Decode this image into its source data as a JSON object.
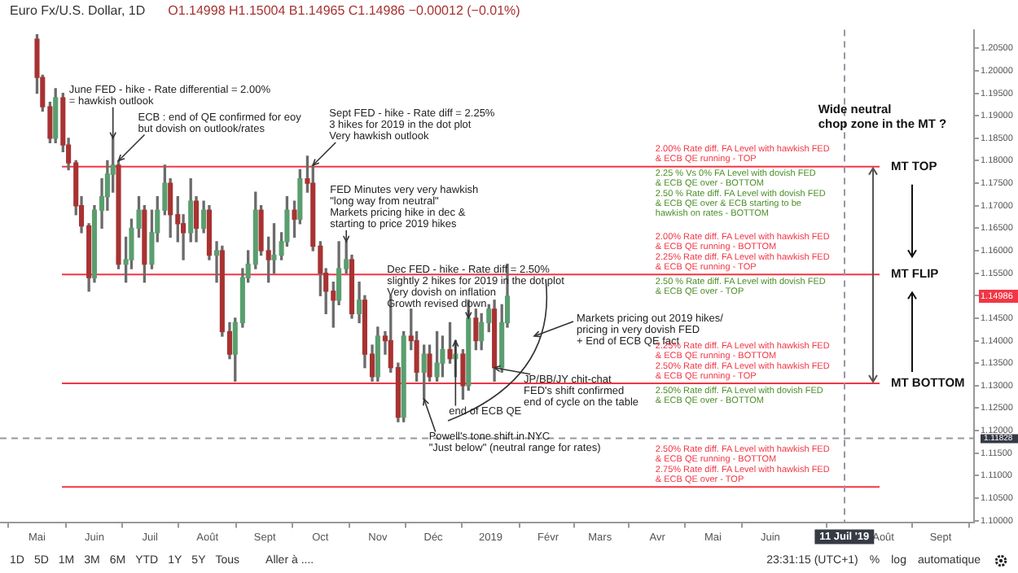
{
  "chart_data": {
    "type": "candlestick",
    "title": "Euro Fx/U.S. Dollar, 1D",
    "subtitle": "O1.14998 H1.15004 B1.14965 C1.14986 −0.00012 (−0.01%)",
    "x": [
      "2018-05-01",
      "2018-05-04",
      "2018-05-08",
      "2018-05-11",
      "2018-05-15",
      "2018-05-18",
      "2018-05-22",
      "2018-05-25",
      "2018-05-29",
      "2018-06-01",
      "2018-06-05",
      "2018-06-08",
      "2018-06-11",
      "2018-06-14",
      "2018-06-18",
      "2018-06-21",
      "2018-06-25",
      "2018-06-28",
      "2018-07-02",
      "2018-07-05",
      "2018-07-09",
      "2018-07-12",
      "2018-07-16",
      "2018-07-19",
      "2018-07-23",
      "2018-07-26",
      "2018-07-30",
      "2018-08-02",
      "2018-08-06",
      "2018-08-09",
      "2018-08-13",
      "2018-08-16",
      "2018-08-20",
      "2018-08-23",
      "2018-08-27",
      "2018-08-30",
      "2018-09-03",
      "2018-09-06",
      "2018-09-10",
      "2018-09-13",
      "2018-09-17",
      "2018-09-20",
      "2018-09-24",
      "2018-09-27",
      "2018-10-01",
      "2018-10-04",
      "2018-10-08",
      "2018-10-11",
      "2018-10-15",
      "2018-10-18",
      "2018-10-22",
      "2018-10-25",
      "2018-10-29",
      "2018-11-01",
      "2018-11-05",
      "2018-11-08",
      "2018-11-12",
      "2018-11-15",
      "2018-11-19",
      "2018-11-22",
      "2018-11-26",
      "2018-11-29",
      "2018-12-03",
      "2018-12-06",
      "2018-12-10",
      "2018-12-13",
      "2018-12-17",
      "2018-12-20",
      "2018-12-24",
      "2018-12-27",
      "2018-12-31",
      "2019-01-03",
      "2019-01-07",
      "2019-01-10"
    ],
    "ohlc": [
      [
        1.207,
        1.208,
        1.195,
        1.1985
      ],
      [
        1.1985,
        1.199,
        1.191,
        1.192
      ],
      [
        1.192,
        1.193,
        1.184,
        1.185
      ],
      [
        1.185,
        1.196,
        1.184,
        1.194
      ],
      [
        1.194,
        1.195,
        1.182,
        1.1835
      ],
      [
        1.1835,
        1.185,
        1.178,
        1.1795
      ],
      [
        1.1795,
        1.18,
        1.168,
        1.17
      ],
      [
        1.17,
        1.172,
        1.164,
        1.1655
      ],
      [
        1.1655,
        1.166,
        1.151,
        1.154
      ],
      [
        1.154,
        1.17,
        1.153,
        1.169
      ],
      [
        1.169,
        1.176,
        1.165,
        1.172
      ],
      [
        1.172,
        1.18,
        1.169,
        1.177
      ],
      [
        1.177,
        1.185,
        1.173,
        1.179
      ],
      [
        1.179,
        1.18,
        1.156,
        1.157
      ],
      [
        1.157,
        1.163,
        1.153,
        1.158
      ],
      [
        1.158,
        1.167,
        1.156,
        1.165
      ],
      [
        1.165,
        1.172,
        1.163,
        1.169
      ],
      [
        1.169,
        1.17,
        1.153,
        1.157
      ],
      [
        1.157,
        1.169,
        1.156,
        1.164
      ],
      [
        1.164,
        1.172,
        1.162,
        1.169
      ],
      [
        1.169,
        1.179,
        1.168,
        1.175
      ],
      [
        1.175,
        1.176,
        1.163,
        1.168
      ],
      [
        1.168,
        1.172,
        1.162,
        1.166
      ],
      [
        1.166,
        1.168,
        1.158,
        1.164
      ],
      [
        1.164,
        1.176,
        1.162,
        1.171
      ],
      [
        1.171,
        1.172,
        1.162,
        1.165
      ],
      [
        1.165,
        1.171,
        1.164,
        1.169
      ],
      [
        1.169,
        1.17,
        1.158,
        1.159
      ],
      [
        1.159,
        1.162,
        1.153,
        1.16
      ],
      [
        1.16,
        1.161,
        1.141,
        1.142
      ],
      [
        1.142,
        1.144,
        1.136,
        1.137
      ],
      [
        1.137,
        1.145,
        1.131,
        1.144
      ],
      [
        1.144,
        1.156,
        1.143,
        1.154
      ],
      [
        1.154,
        1.16,
        1.153,
        1.157
      ],
      [
        1.157,
        1.173,
        1.156,
        1.169
      ],
      [
        1.169,
        1.17,
        1.159,
        1.16
      ],
      [
        1.16,
        1.163,
        1.153,
        1.158
      ],
      [
        1.158,
        1.166,
        1.155,
        1.159
      ],
      [
        1.159,
        1.164,
        1.158,
        1.162
      ],
      [
        1.162,
        1.172,
        1.161,
        1.169
      ],
      [
        1.169,
        1.171,
        1.163,
        1.167
      ],
      [
        1.167,
        1.178,
        1.166,
        1.176
      ],
      [
        1.176,
        1.181,
        1.173,
        1.175
      ],
      [
        1.175,
        1.179,
        1.16,
        1.161
      ],
      [
        1.161,
        1.162,
        1.15,
        1.155
      ],
      [
        1.155,
        1.156,
        1.146,
        1.151
      ],
      [
        1.151,
        1.153,
        1.143,
        1.149
      ],
      [
        1.149,
        1.162,
        1.148,
        1.156
      ],
      [
        1.156,
        1.162,
        1.155,
        1.158
      ],
      [
        1.158,
        1.159,
        1.145,
        1.146
      ],
      [
        1.146,
        1.153,
        1.144,
        1.149
      ],
      [
        1.149,
        1.15,
        1.134,
        1.137
      ],
      [
        1.137,
        1.139,
        1.131,
        1.132
      ],
      [
        1.132,
        1.143,
        1.131,
        1.141
      ],
      [
        1.141,
        1.142,
        1.137,
        1.14
      ],
      [
        1.14,
        1.15,
        1.133,
        1.134
      ],
      [
        1.134,
        1.135,
        1.122,
        1.123
      ],
      [
        1.123,
        1.142,
        1.122,
        1.141
      ],
      [
        1.141,
        1.147,
        1.138,
        1.14
      ],
      [
        1.14,
        1.142,
        1.131,
        1.133
      ],
      [
        1.133,
        1.139,
        1.127,
        1.137
      ],
      [
        1.137,
        1.139,
        1.131,
        1.132
      ],
      [
        1.132,
        1.142,
        1.131,
        1.135
      ],
      [
        1.135,
        1.141,
        1.132,
        1.138
      ],
      [
        1.138,
        1.144,
        1.135,
        1.136
      ],
      [
        1.136,
        1.14,
        1.132,
        1.137
      ],
      [
        1.137,
        1.138,
        1.127,
        1.13
      ],
      [
        1.13,
        1.149,
        1.129,
        1.145
      ],
      [
        1.145,
        1.147,
        1.138,
        1.14
      ],
      [
        1.14,
        1.146,
        1.138,
        1.144
      ],
      [
        1.144,
        1.148,
        1.142,
        1.147
      ],
      [
        1.147,
        1.149,
        1.131,
        1.134
      ],
      [
        1.134,
        1.148,
        1.133,
        1.144
      ],
      [
        1.144,
        1.157,
        1.143,
        1.14986
      ]
    ],
    "xlim": [
      "2018-04-11",
      "2019-09-19"
    ],
    "xticks": [
      {
        "value": "2018-05-01",
        "label": "Mai"
      },
      {
        "value": "2018-06-01",
        "label": "Juin"
      },
      {
        "value": "2018-07-01",
        "label": "Juil"
      },
      {
        "value": "2018-08-01",
        "label": "Août"
      },
      {
        "value": "2018-09-01",
        "label": "Sept"
      },
      {
        "value": "2018-10-01",
        "label": "Oct"
      },
      {
        "value": "2018-11-01",
        "label": "Nov"
      },
      {
        "value": "2018-12-01",
        "label": "Déc"
      },
      {
        "value": "2019-01-01",
        "label": "2019"
      },
      {
        "value": "2019-02-01",
        "label": "Févr"
      },
      {
        "value": "2019-03-01",
        "label": "Mars"
      },
      {
        "value": "2019-04-01",
        "label": "Avr"
      },
      {
        "value": "2019-05-01",
        "label": "Mai"
      },
      {
        "value": "2019-06-01",
        "label": "Juin"
      },
      {
        "value": "2019-08-01",
        "label": "Août"
      },
      {
        "value": "2019-09-01",
        "label": "Sept"
      }
    ],
    "ylim": [
      1.0995,
      1.2091
    ],
    "yticks": [
      {
        "value": 1.1,
        "label": "1.10000"
      },
      {
        "value": 1.105,
        "label": "1.10500"
      },
      {
        "value": 1.11,
        "label": "1.11000"
      },
      {
        "value": 1.115,
        "label": "1.11500"
      },
      {
        "value": 1.12,
        "label": "1.12000"
      },
      {
        "value": 1.125,
        "label": "1.12500"
      },
      {
        "value": 1.13,
        "label": "1.13000"
      },
      {
        "value": 1.135,
        "label": "1.13500"
      },
      {
        "value": 1.14,
        "label": "1.14000"
      },
      {
        "value": 1.145,
        "label": "1.14500"
      },
      {
        "value": 1.15,
        "label": null
      },
      {
        "value": 1.155,
        "label": "1.15500"
      },
      {
        "value": 1.16,
        "label": "1.16000"
      },
      {
        "value": 1.165,
        "label": "1.16500"
      },
      {
        "value": 1.17,
        "label": "1.17000"
      },
      {
        "value": 1.175,
        "label": "1.17500"
      },
      {
        "value": 1.18,
        "label": "1.18000"
      },
      {
        "value": 1.185,
        "label": "1.18500"
      },
      {
        "value": 1.19,
        "label": "1.19000"
      },
      {
        "value": 1.195,
        "label": "1.19500"
      },
      {
        "value": 1.2,
        "label": "1.20000"
      },
      {
        "value": 1.205,
        "label": "1.20500"
      }
    ],
    "ref_lines": [
      {
        "axis": "y",
        "value": 1.1787,
        "label": "MT TOP",
        "color": "#f23645"
      },
      {
        "axis": "y",
        "value": 1.1547,
        "label": "MT FLIP",
        "color": "#f23645"
      },
      {
        "axis": "y",
        "value": 1.1305,
        "label": "MT BOTTOM",
        "color": "#f23645"
      },
      {
        "axis": "y",
        "value": 1.1075,
        "color": "#f23645"
      },
      {
        "axis": "y",
        "value": 1.11828,
        "label": "1.11828",
        "color": "#9598a1",
        "line_style": "dashed"
      },
      {
        "axis": "x",
        "value": "2019-07-11",
        "label": "11 Juil '19",
        "color": "#9598a1",
        "line_style": "dashed"
      }
    ],
    "annotations": [
      {
        "text": "June FED - hike - Rate differential = 2.00%\n= hawkish outlook",
        "x": "2018-06-11",
        "y": 1.185
      },
      {
        "text": "ECB : end of QE confirmed for eoy\nbut dovish on outlook/rates",
        "x": "2018-06-14",
        "y": 1.18
      },
      {
        "text": "Sept FED - hike - Rate diff = 2.25%\n3 hikes for 2019 in the dot plot\nVery hawkish outlook",
        "x": "2018-09-27",
        "y": 1.179
      },
      {
        "text": "FED Minutes very very hawkish\n\"long way from neutral\"\nMarkets pricing hike in dec &\nstarting to price 2019 hikes",
        "x": "2018-10-15",
        "y": 1.162
      },
      {
        "text": "Dec FED - hike - Rate diff = 2.50%\nslightly 2 hikes for 2019 in the dot plot\nVery dovish on inflation\nGrowth revised down",
        "x": "2018-12-20",
        "y": 1.145
      },
      "Markets pricing out 2019 hikes/\npricing in very dovish FED\n+ End of ECB QE fact",
      {
        "text": "JP/BB/JY chit-chat\nFED's shift confirmed\nend of cycle on the table",
        "x": "2019-01-03",
        "y": 1.134
      },
      {
        "text": "end of ECB QE",
        "x": "2018-12-13",
        "y": 1.14
      },
      {
        "text": "Powell's tone shift in NYC\n\"Just below\" (neutral range for rates)",
        "x": "2018-11-26",
        "y": 1.127
      },
      "2.00% Rate diff. FA Level with hawkish FED\n& ECB QE running - TOP",
      "2.25 % Vs 0% FA Level with dovish FED\n& ECB QE over - BOTTOM",
      "2.50 % Rate diff. FA Level with dovish FED\n& ECB QE over & ECB starting to be\nhawkish on rates - BOTTOM",
      "2.00% Rate diff. FA Level with hawkish FED\n& ECB QE running - BOTTOM",
      "2.25% Rate diff. FA Level with hawkish FED\n& ECB QE running - TOP",
      "2.50 % Rate diff. FA Level with dovish FED\n& ECB QE over - TOP",
      "2.25% Rate diff. FA Level with hawkish FED\n& ECB QE running - BOTTOM",
      "2.50% Rate diff. FA Level with hawkish FED\n& ECB QE running - TOP",
      "2.50% Rate diff. FA Level with dovish FED\n& ECB QE over - BOTTOM",
      "2.50% Rate diff. FA Level with hawkish FED\n& ECB QE running - BOTTOM",
      "2.75% Rate diff. FA Level with hawkish FED\n& ECB QE over - TOP",
      "Wide neutral\nchop zone in the MT ?",
      "1.14986",
      "1D",
      "5D",
      "1M",
      "3M",
      "6M",
      "YTD",
      "1Y",
      "5Y",
      "Tous",
      "Aller à ....",
      "23:31:15 (UTC+1)",
      "%",
      "log",
      "automatique"
    ]
  }
}
